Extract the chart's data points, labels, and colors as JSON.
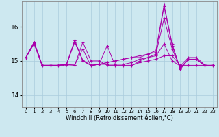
{
  "xlabel": "Windchill (Refroidissement éolien,°C)",
  "background_color": "#cde8f0",
  "line_color": "#aa00aa",
  "grid_color": "#aaccdd",
  "xtick_labels": [
    "0",
    "1",
    "2",
    "3",
    "4",
    "5",
    "6",
    "7",
    "8",
    "9",
    "10",
    "11",
    "12",
    "13",
    "14",
    "15",
    "16",
    "17",
    "18",
    "19",
    "20",
    "21",
    "22",
    "23"
  ],
  "yticks": [
    14,
    15,
    16
  ],
  "ylim": [
    13.65,
    16.75
  ],
  "xlim": [
    -0.5,
    23.5
  ],
  "series": [
    [
      15.1,
      15.5,
      14.85,
      14.85,
      14.85,
      14.88,
      14.88,
      15.35,
      14.85,
      14.9,
      15.45,
      14.85,
      14.85,
      14.85,
      15.0,
      15.1,
      15.15,
      15.5,
      15.0,
      14.85,
      15.1,
      15.1,
      14.88,
      14.85
    ],
    [
      15.1,
      15.52,
      14.87,
      14.87,
      14.87,
      14.9,
      15.55,
      15.02,
      14.87,
      14.9,
      14.9,
      14.9,
      14.9,
      14.95,
      15.05,
      15.1,
      15.2,
      16.25,
      15.35,
      14.8,
      15.05,
      15.05,
      14.87,
      14.87
    ],
    [
      15.1,
      15.55,
      14.87,
      14.87,
      14.87,
      14.9,
      15.6,
      15.0,
      14.87,
      14.9,
      14.95,
      15.0,
      15.05,
      15.1,
      15.1,
      15.2,
      15.25,
      16.6,
      15.45,
      14.78,
      15.05,
      15.05,
      14.85,
      14.87
    ],
    [
      15.1,
      15.55,
      14.87,
      14.87,
      14.87,
      14.9,
      15.6,
      15.0,
      14.87,
      14.9,
      14.95,
      15.0,
      15.05,
      15.1,
      15.15,
      15.2,
      15.3,
      16.65,
      15.5,
      14.75,
      15.05,
      15.05,
      14.87,
      14.87
    ],
    [
      15.1,
      15.55,
      14.87,
      14.87,
      14.87,
      14.9,
      14.87,
      15.55,
      15.0,
      15.0,
      14.87,
      14.87,
      14.87,
      14.87,
      14.95,
      15.0,
      15.05,
      15.15,
      15.15,
      14.87,
      14.87,
      14.87,
      14.87,
      14.87
    ]
  ],
  "xlabel_fontsize": 6.0,
  "xtick_fontsize": 5.0,
  "ytick_fontsize": 6.5
}
